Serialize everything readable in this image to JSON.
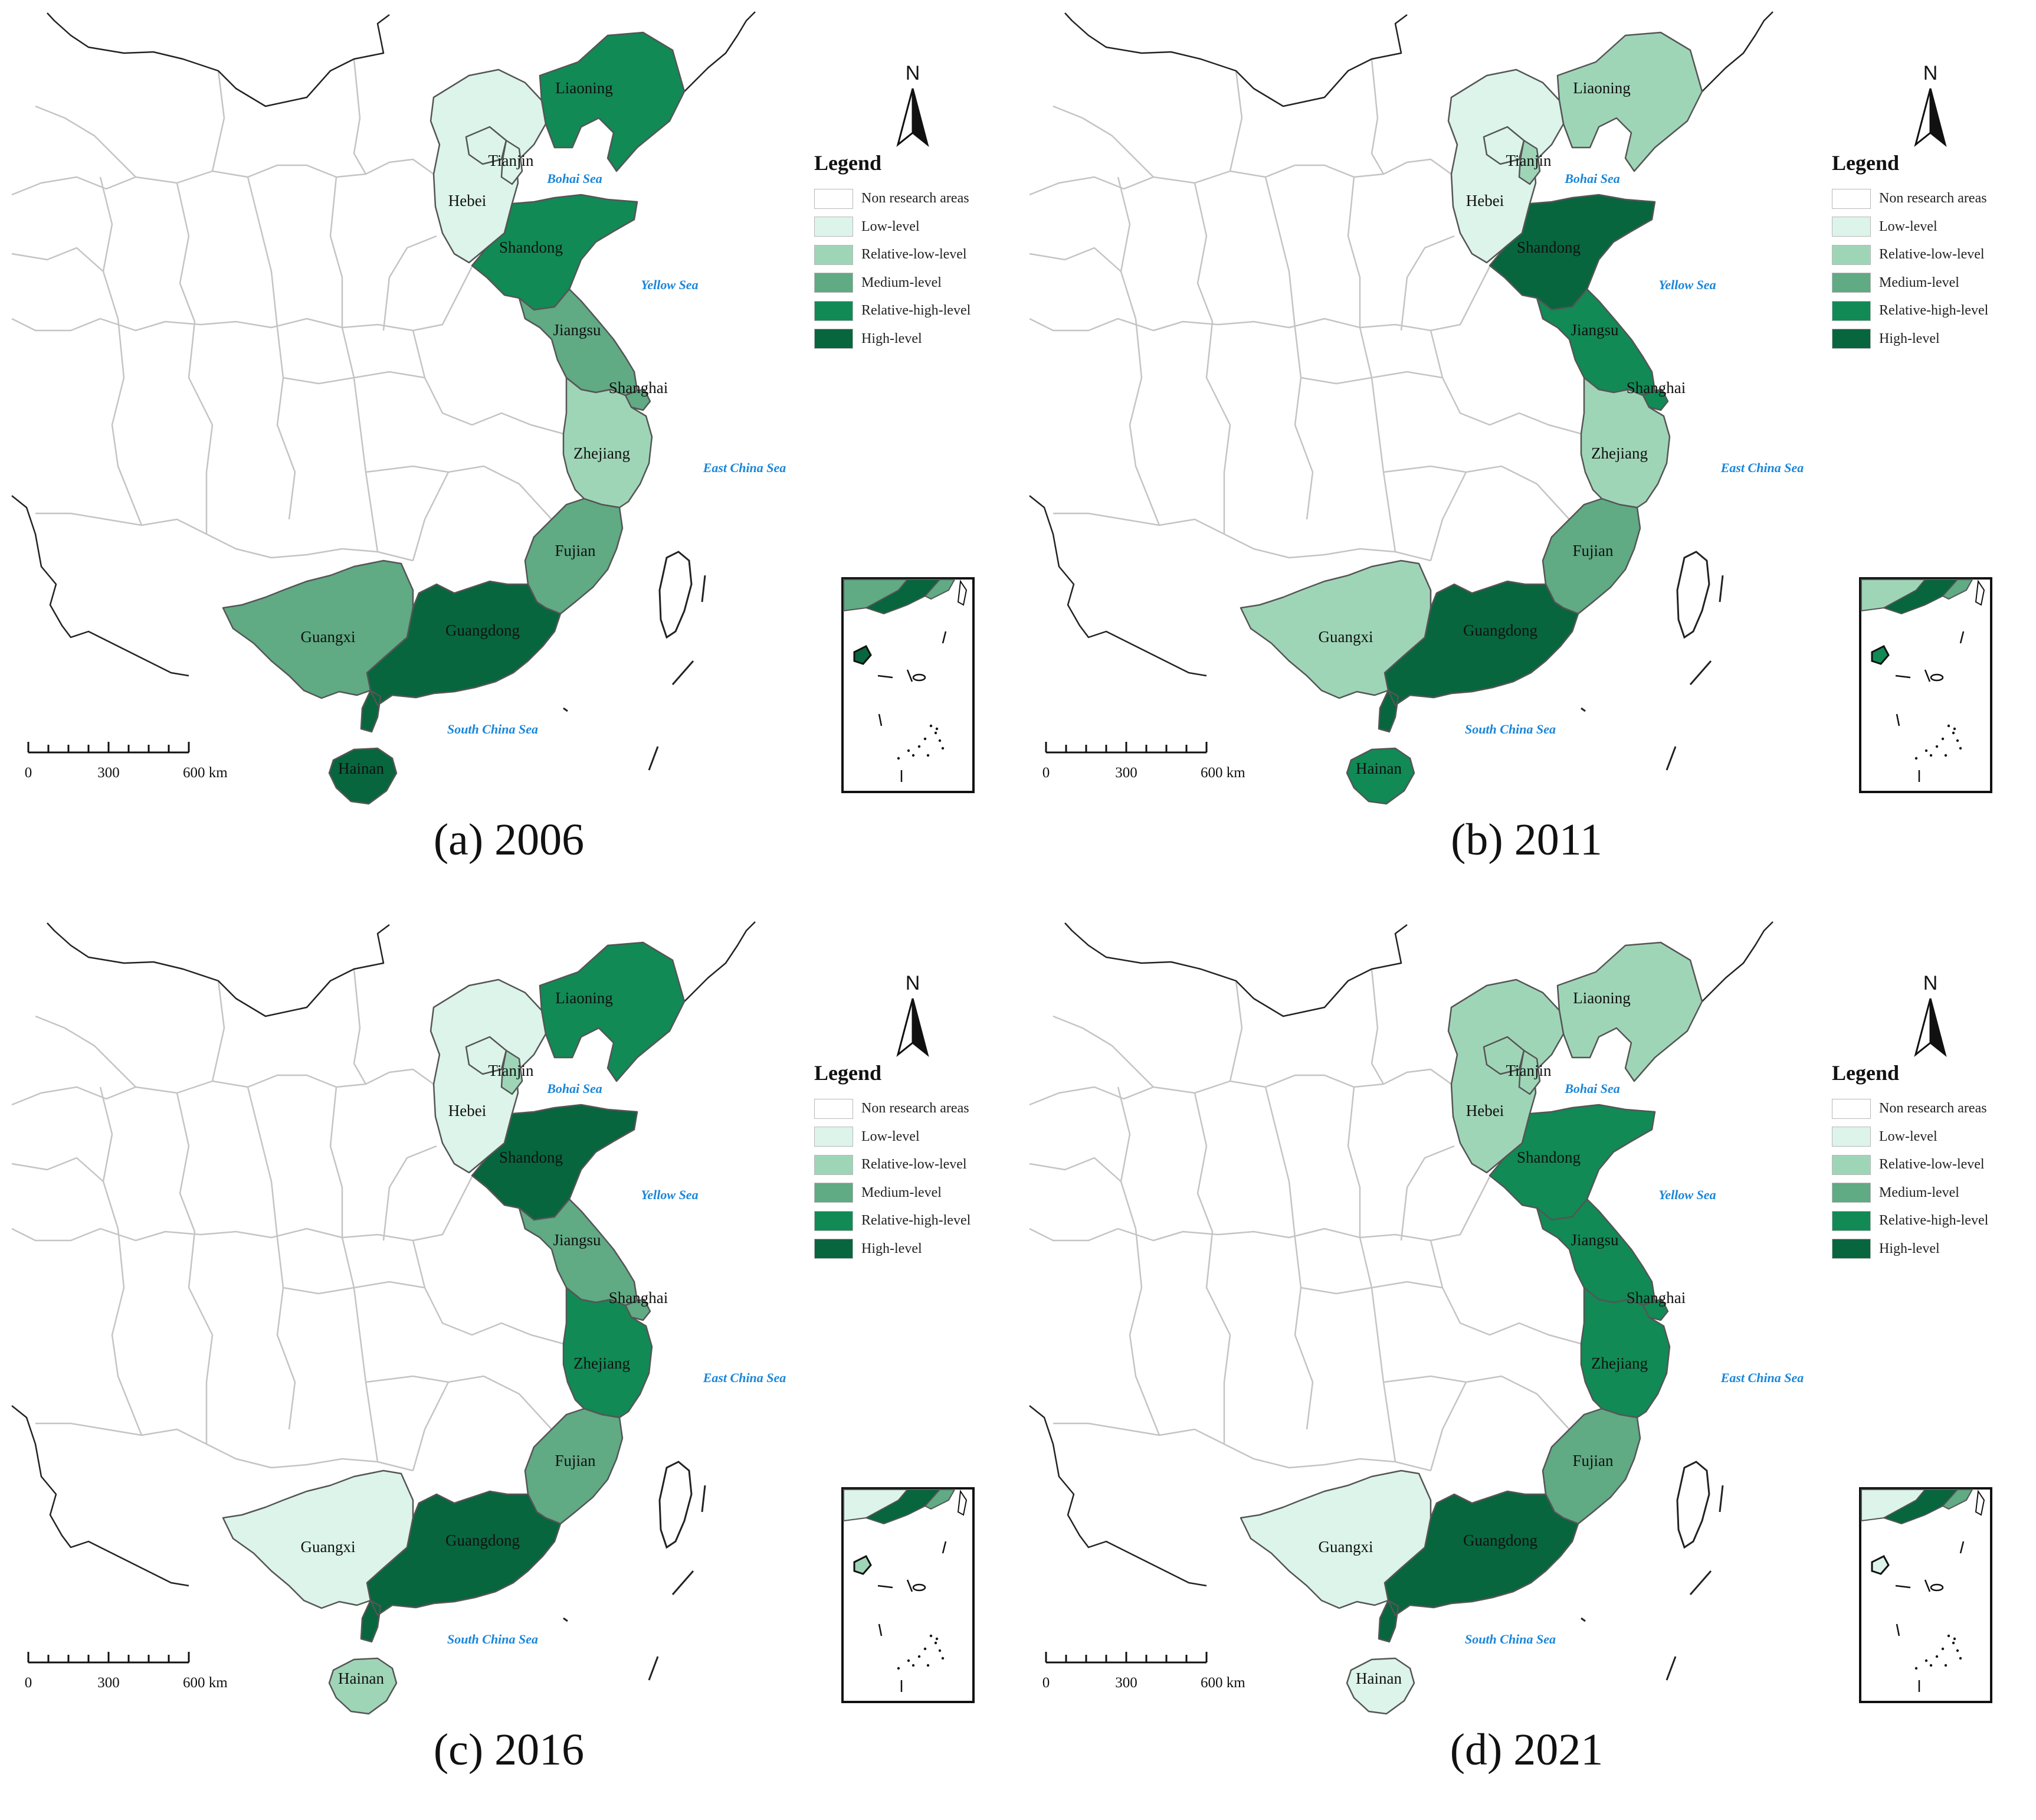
{
  "figure": {
    "levels": [
      {
        "key": "non",
        "label": "Non research areas",
        "color": "#ffffff"
      },
      {
        "key": "low",
        "label": "Low-level",
        "color": "#dcf4ea"
      },
      {
        "key": "rel_low",
        "label": "Relative-low-level",
        "color": "#9fd5b7"
      },
      {
        "key": "medium",
        "label": "Medium-level",
        "color": "#60aa84"
      },
      {
        "key": "rel_high",
        "label": "Relative-high-level",
        "color": "#118a55"
      },
      {
        "key": "high",
        "label": "High-level",
        "color": "#07663e"
      }
    ],
    "legend_title": "Legend",
    "north_label": "N",
    "scale_labels": [
      "0",
      "300",
      "600 km"
    ],
    "seas": [
      "Bohai Sea",
      "Yellow Sea",
      "East China Sea",
      "South China Sea"
    ],
    "sea_color": "#1a86d9",
    "panels": [
      {
        "caption": "(a)  2006",
        "levels": {
          "Liaoning": "rel_high",
          "Hebei": "low",
          "Tianjin": "low",
          "Shandong": "rel_high",
          "Jiangsu": "medium",
          "Shanghai": "medium",
          "Zhejiang": "rel_low",
          "Fujian": "medium",
          "Guangdong": "high",
          "Guangxi": "medium",
          "Hainan": "high"
        }
      },
      {
        "caption": "(b)  2011",
        "levels": {
          "Liaoning": "rel_low",
          "Hebei": "low",
          "Tianjin": "rel_low",
          "Shandong": "high",
          "Jiangsu": "rel_high",
          "Shanghai": "rel_high",
          "Zhejiang": "rel_low",
          "Fujian": "medium",
          "Guangdong": "high",
          "Guangxi": "rel_low",
          "Hainan": "rel_high"
        }
      },
      {
        "caption": "(c)  2016",
        "levels": {
          "Liaoning": "rel_high",
          "Hebei": "low",
          "Tianjin": "rel_low",
          "Shandong": "high",
          "Jiangsu": "medium",
          "Shanghai": "medium",
          "Zhejiang": "rel_high",
          "Fujian": "medium",
          "Guangdong": "high",
          "Guangxi": "low",
          "Hainan": "rel_low"
        }
      },
      {
        "caption": "(d)  2021",
        "levels": {
          "Liaoning": "rel_low",
          "Hebei": "rel_low",
          "Tianjin": "rel_low",
          "Shandong": "rel_high",
          "Jiangsu": "rel_high",
          "Shanghai": "rel_high",
          "Zhejiang": "rel_high",
          "Fujian": "medium",
          "Guangdong": "high",
          "Guangxi": "low",
          "Hainan": "low"
        }
      }
    ]
  }
}
